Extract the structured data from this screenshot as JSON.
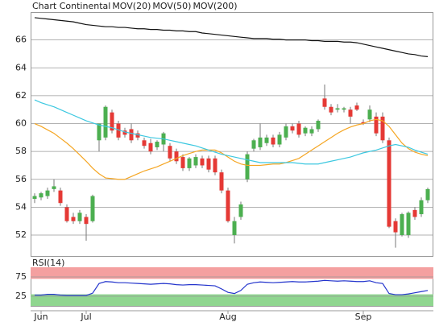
{
  "chart_data": [
    {
      "type": "candlestick",
      "title": "Chart Continental",
      "title_color": "#e0602a",
      "categories": [
        null,
        "Jun",
        null,
        null,
        null,
        null,
        null,
        null,
        "Jul",
        null,
        null,
        null,
        null,
        null,
        null,
        null,
        null,
        null,
        null,
        null,
        null,
        null,
        null,
        null,
        null,
        null,
        null,
        null,
        null,
        null,
        "Aug",
        null,
        null,
        null,
        null,
        null,
        null,
        null,
        null,
        null,
        null,
        null,
        null,
        null,
        null,
        null,
        null,
        null,
        null,
        null,
        null,
        "Sep",
        null,
        null,
        null,
        null,
        null,
        null,
        null,
        null,
        null,
        null
      ],
      "open": [
        54.6,
        54.7,
        54.8,
        55.3,
        55.2,
        54.0,
        53.3,
        53.0,
        53.3,
        53.0,
        58.8,
        59.0,
        60.8,
        60.0,
        59.5,
        59.6,
        59.3,
        58.8,
        58.6,
        58.3,
        58.5,
        58.4,
        58.0,
        57.6,
        56.8,
        57.0,
        57.5,
        57.5,
        57.5,
        56.5,
        55.2,
        52.0,
        53.3,
        56.0,
        58.2,
        58.3,
        58.6,
        59.0,
        58.5,
        59.0,
        59.8,
        60.0,
        59.3,
        59.3,
        59.6,
        61.8,
        61.2,
        61.0,
        61.0,
        61.0,
        61.3,
        60.1,
        60.3,
        60.5,
        60.5,
        58.8,
        53.0,
        52.0,
        52.0,
        53.8,
        53.5,
        54.5
      ],
      "high": [
        55.0,
        55.1,
        55.4,
        56.0,
        55.4,
        54.2,
        53.6,
        53.8,
        53.5,
        54.9,
        60.0,
        61.3,
        61.0,
        60.2,
        59.7,
        60.0,
        59.5,
        59.0,
        58.9,
        58.8,
        59.4,
        58.6,
        58.2,
        57.8,
        57.6,
        57.8,
        57.7,
        57.7,
        57.7,
        56.7,
        55.4,
        53.3,
        54.4,
        58.0,
        58.9,
        60.0,
        59.2,
        59.2,
        59.4,
        60.0,
        60.0,
        60.2,
        59.8,
        59.8,
        60.3,
        62.8,
        61.4,
        61.4,
        61.2,
        61.2,
        61.5,
        60.3,
        61.3,
        60.8,
        60.8,
        59.0,
        53.2,
        53.6,
        53.7,
        54.0,
        54.7,
        55.4
      ],
      "low": [
        54.3,
        54.5,
        54.6,
        55.1,
        54.1,
        52.9,
        52.8,
        52.8,
        51.6,
        52.9,
        58.0,
        58.8,
        59.3,
        58.8,
        59.0,
        58.6,
        58.8,
        58.2,
        57.8,
        58.1,
        58.0,
        57.3,
        57.1,
        56.6,
        56.6,
        56.8,
        56.8,
        56.5,
        56.3,
        55.0,
        52.9,
        51.4,
        53.1,
        55.8,
        58.0,
        58.1,
        58.4,
        58.3,
        58.3,
        58.8,
        59.3,
        59.0,
        59.1,
        59.1,
        59.4,
        61.0,
        60.6,
        60.8,
        60.8,
        60.0,
        60.9,
        59.9,
        60.1,
        59.1,
        58.6,
        52.5,
        51.1,
        51.9,
        51.8,
        53.1,
        53.3,
        54.3
      ],
      "close": [
        54.8,
        55.0,
        55.2,
        55.5,
        54.3,
        53.0,
        53.0,
        53.6,
        52.8,
        54.8,
        60.0,
        61.2,
        59.5,
        59.0,
        59.2,
        58.8,
        59.0,
        58.4,
        58.0,
        58.7,
        59.3,
        57.5,
        57.3,
        56.8,
        57.5,
        57.6,
        57.0,
        56.7,
        56.5,
        55.2,
        53.0,
        53.0,
        54.2,
        57.8,
        58.8,
        59.0,
        59.0,
        58.5,
        59.2,
        59.8,
        59.5,
        59.2,
        59.7,
        59.6,
        60.2,
        61.2,
        60.8,
        61.1,
        61.1,
        60.5,
        61.0,
        60.0,
        61.0,
        59.3,
        58.8,
        52.6,
        52.2,
        53.5,
        53.6,
        53.3,
        54.5,
        55.3
      ],
      "up_color": "#4caf50",
      "down_color": "#e53935",
      "series": [
        {
          "name": "MOV(20)",
          "color": "#f5a623",
          "values": [
            60.0,
            59.8,
            59.55,
            59.3,
            58.95,
            58.6,
            58.2,
            57.75,
            57.3,
            56.8,
            56.4,
            56.1,
            56.05,
            56.0,
            56.0,
            56.2,
            56.4,
            56.6,
            56.75,
            56.9,
            57.1,
            57.3,
            57.5,
            57.7,
            57.85,
            58.0,
            58.1,
            58.1,
            58.1,
            57.9,
            57.6,
            57.3,
            57.1,
            57.0,
            57.0,
            57.0,
            57.05,
            57.1,
            57.1,
            57.2,
            57.35,
            57.5,
            57.8,
            58.1,
            58.4,
            58.7,
            59.0,
            59.3,
            59.55,
            59.75,
            59.9,
            60.0,
            60.2,
            60.3,
            60.2,
            59.8,
            59.2,
            58.6,
            58.2,
            57.95,
            57.8,
            57.7
          ]
        },
        {
          "name": "MOV(50)",
          "color": "#3cc8e0",
          "values": [
            61.7,
            61.5,
            61.35,
            61.2,
            61.0,
            60.8,
            60.6,
            60.4,
            60.2,
            60.05,
            59.9,
            59.8,
            59.7,
            59.55,
            59.4,
            59.3,
            59.2,
            59.1,
            59.0,
            58.95,
            58.9,
            58.8,
            58.7,
            58.6,
            58.5,
            58.4,
            58.25,
            58.1,
            57.95,
            57.8,
            57.7,
            57.6,
            57.5,
            57.4,
            57.3,
            57.2,
            57.2,
            57.2,
            57.2,
            57.2,
            57.2,
            57.15,
            57.1,
            57.1,
            57.1,
            57.2,
            57.3,
            57.4,
            57.5,
            57.6,
            57.75,
            57.9,
            58.0,
            58.1,
            58.25,
            58.4,
            58.5,
            58.4,
            58.3,
            58.1,
            57.95,
            57.8
          ]
        },
        {
          "name": "MOV(200)",
          "color": "#111111",
          "values": [
            67.6,
            67.55,
            67.5,
            67.45,
            67.4,
            67.35,
            67.3,
            67.2,
            67.1,
            67.05,
            67.0,
            66.95,
            66.95,
            66.9,
            66.9,
            66.85,
            66.8,
            66.8,
            66.75,
            66.75,
            66.7,
            66.7,
            66.65,
            66.65,
            66.6,
            66.6,
            66.5,
            66.45,
            66.4,
            66.35,
            66.3,
            66.25,
            66.2,
            66.15,
            66.1,
            66.1,
            66.1,
            66.05,
            66.05,
            66.0,
            66.0,
            66.0,
            66.0,
            65.95,
            65.95,
            65.9,
            65.9,
            65.9,
            65.85,
            65.85,
            65.8,
            65.7,
            65.6,
            65.5,
            65.4,
            65.3,
            65.2,
            65.1,
            65.0,
            64.95,
            64.85,
            64.8
          ]
        }
      ],
      "ylim": [
        50.5,
        68
      ],
      "yticks": [
        52,
        54,
        56,
        58,
        60,
        62,
        64,
        66
      ],
      "grid": true
    },
    {
      "type": "line",
      "title": "RSI(14)",
      "color": "#2233cc",
      "values": [
        28,
        28,
        30,
        30,
        28,
        27,
        27,
        27,
        27,
        33,
        58,
        63,
        62,
        60,
        60,
        59,
        58,
        57,
        56,
        57,
        58,
        57,
        55,
        54,
        55,
        55,
        54,
        53,
        52,
        44,
        35,
        32,
        40,
        56,
        60,
        62,
        61,
        60,
        61,
        62,
        63,
        62,
        62,
        63,
        64,
        66,
        65,
        64,
        65,
        64,
        63,
        63,
        65,
        60,
        58,
        32,
        29,
        29,
        31,
        34,
        37,
        40
      ],
      "bands": [
        {
          "range": [
            70,
            100
          ],
          "color": "#f4a0a0"
        },
        {
          "range": [
            0,
            30
          ],
          "color": "#8fd68f"
        }
      ],
      "ylim": [
        0,
        100
      ],
      "yticks": [
        25,
        75
      ],
      "grid": true
    }
  ]
}
